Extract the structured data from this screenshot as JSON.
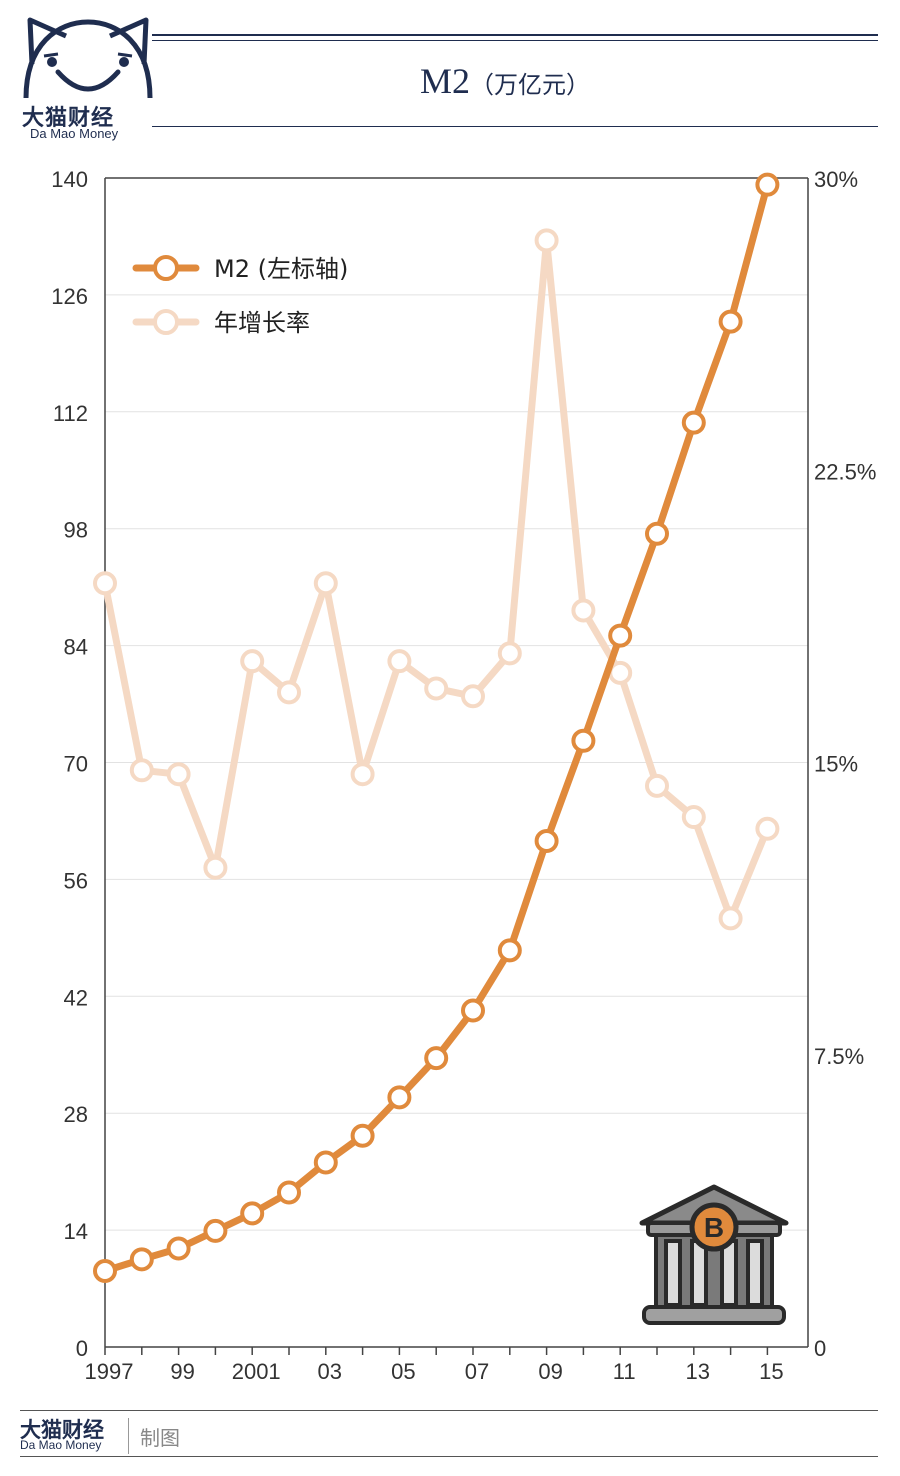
{
  "header": {
    "logo_cn": "大猫财经",
    "logo_en": "Da Mao Money",
    "title": "M2",
    "title_unit": "（万亿元）"
  },
  "footer": {
    "brand_cn": "大猫财经",
    "brand_en": "Da Mao Money",
    "credit": "制图"
  },
  "colors": {
    "m2_line": "#e08a3c",
    "growth_line": "#f5d9c4",
    "navy": "#1f2d4f",
    "grid": "#e2e2e2"
  },
  "chart_data": {
    "type": "line",
    "title": "M2（万亿元）",
    "x": [
      "1997",
      "1998",
      "1999",
      "2000",
      "2001",
      "2002",
      "2003",
      "2004",
      "2005",
      "2006",
      "2007",
      "2008",
      "2009",
      "2010",
      "2011",
      "2012",
      "2013",
      "2014",
      "2015"
    ],
    "x_tick_labels": [
      "1997",
      "",
      "99",
      "",
      "2001",
      "",
      "03",
      "",
      "05",
      "",
      "07",
      "",
      "09",
      "",
      "11",
      "",
      "13",
      "",
      "15"
    ],
    "y_left": {
      "ylim": [
        0,
        140
      ],
      "ticks": [
        "0",
        "14",
        "28",
        "42",
        "56",
        "70",
        "84",
        "98",
        "112",
        "126",
        "140"
      ]
    },
    "y_right": {
      "ylim": [
        0,
        30
      ],
      "ticks": [
        "0",
        "7.5%",
        "15%",
        "22.5%",
        "30%"
      ],
      "tick_values": [
        0,
        7.5,
        15,
        22.5,
        30
      ]
    },
    "legend_position": "top-left",
    "grid": true,
    "series": [
      {
        "name": "M2 (左标轴)",
        "axis": "left",
        "values": [
          9.1,
          10.5,
          11.8,
          13.9,
          16.0,
          18.5,
          22.1,
          25.3,
          29.9,
          34.6,
          40.3,
          47.5,
          60.6,
          72.6,
          85.2,
          97.4,
          110.7,
          122.8,
          139.2
        ]
      },
      {
        "name": "年增长率",
        "axis": "right",
        "values": [
          19.6,
          14.8,
          14.7,
          12.3,
          17.6,
          16.8,
          19.6,
          14.7,
          17.6,
          16.9,
          16.7,
          17.8,
          28.4,
          18.9,
          17.3,
          14.4,
          13.6,
          11.0,
          13.3
        ]
      }
    ],
    "building_icon_letter": "B"
  }
}
